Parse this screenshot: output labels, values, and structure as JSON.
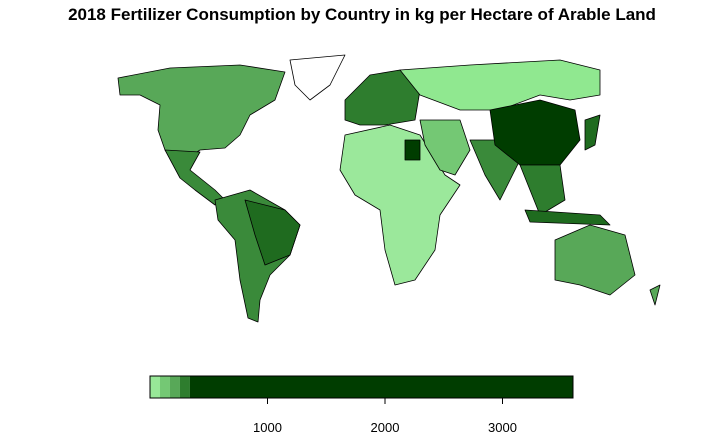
{
  "chart_data": {
    "type": "colorbar",
    "title": "2018 Fertilizer Consumption by Country in kg per Hectare of Arable Land",
    "bins": [
      0,
      85,
      170,
      255,
      340,
      3600
    ],
    "colors": [
      "#98e898",
      "#74c874",
      "#58a858",
      "#2e7d2e",
      "#003d00"
    ],
    "xlim": [
      0,
      3600
    ],
    "xticks": [
      1000,
      2000,
      3000
    ]
  }
}
